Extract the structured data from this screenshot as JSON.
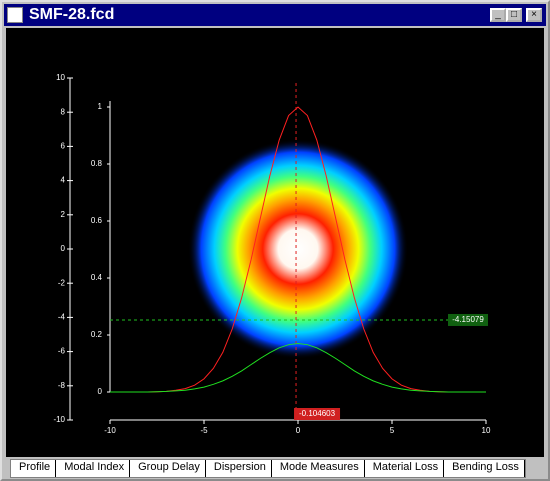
{
  "window": {
    "title": "SMF-28.fcd"
  },
  "plot": {
    "left_axis": {
      "lim": [
        -10,
        10
      ],
      "ticks": [
        10,
        8,
        6,
        4,
        2,
        0,
        -2,
        -4,
        -6,
        -8,
        -10
      ]
    },
    "inner_axis": {
      "lim": [
        0,
        1
      ],
      "ticks": [
        0,
        0.2,
        0.4,
        0.6,
        0.8,
        1
      ]
    },
    "x_axis": {
      "lim": [
        -10,
        10
      ],
      "ticks": [
        -10,
        -5,
        0,
        5,
        10
      ]
    },
    "x": [
      -10,
      -9.5,
      -9,
      -8.5,
      -8,
      -7.5,
      -7,
      -6.5,
      -6,
      -5.5,
      -5,
      -4.5,
      -4,
      -3.5,
      -3,
      -2.5,
      -2,
      -1.5,
      -1,
      -0.5,
      0,
      0.5,
      1,
      1.5,
      2,
      2.5,
      3,
      3.5,
      4,
      4.5,
      5,
      5.5,
      6,
      6.5,
      7,
      7.5,
      8,
      8.5,
      9,
      9.5,
      10
    ],
    "curves": [
      {
        "color": "#ff2020",
        "values": [
          0,
          0,
          0,
          0,
          0,
          0.001,
          0.002,
          0.006,
          0.012,
          0.024,
          0.046,
          0.083,
          0.139,
          0.221,
          0.33,
          0.463,
          0.611,
          0.758,
          0.884,
          0.97,
          1,
          0.97,
          0.884,
          0.758,
          0.611,
          0.463,
          0.33,
          0.221,
          0.139,
          0.083,
          0.046,
          0.024,
          0.012,
          0.006,
          0.002,
          0.001,
          0,
          0,
          0,
          0,
          0
        ]
      },
      {
        "color": "#20e020",
        "values": [
          0,
          0,
          0,
          0,
          0,
          0.001,
          0.002,
          0.004,
          0.006,
          0.011,
          0.017,
          0.027,
          0.039,
          0.055,
          0.074,
          0.096,
          0.118,
          0.138,
          0.155,
          0.166,
          0.17,
          0.166,
          0.155,
          0.138,
          0.118,
          0.096,
          0.074,
          0.055,
          0.039,
          0.027,
          0.017,
          0.011,
          0.006,
          0.004,
          0.002,
          0.001,
          0,
          0,
          0,
          0,
          0
        ]
      }
    ],
    "h_marker": {
      "value": -4.15079,
      "color": "#20c020"
    },
    "v_marker": {
      "value": -0.104603,
      "color": "#e02020"
    }
  },
  "tabs": [
    "Profile",
    "Modal Index",
    "Group Delay",
    "Dispersion",
    "Mode Measures",
    "Material Loss",
    "Bending Loss"
  ]
}
